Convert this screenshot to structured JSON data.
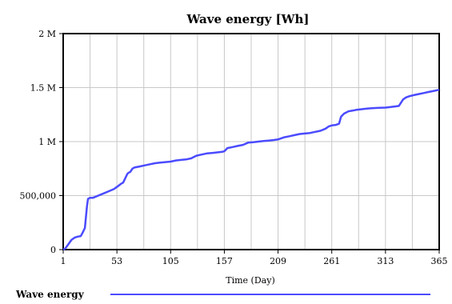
{
  "chart_data": {
    "type": "line",
    "title": "Wave energy [Wh]",
    "xlabel": "Time (Day)",
    "ylabel": "",
    "xlim": [
      1,
      365
    ],
    "ylim": [
      0,
      2000000
    ],
    "x_ticks": [
      1,
      53,
      105,
      157,
      209,
      261,
      313,
      365
    ],
    "x_tick_labels": [
      "1",
      "53",
      "105",
      "157",
      "209",
      "261",
      "313",
      "365"
    ],
    "y_ticks": [
      0,
      500000,
      1000000,
      1500000,
      2000000
    ],
    "y_tick_labels": [
      "0",
      "500,000",
      "1 M",
      "1.5 M",
      "2 M"
    ],
    "grid": true,
    "legend": "bottom",
    "series": [
      {
        "name": "Wave energy",
        "color": "#4b4bff",
        "x": [
          1,
          3,
          6,
          9,
          12,
          15,
          18,
          20,
          22,
          24,
          25,
          27,
          30,
          35,
          40,
          45,
          50,
          53,
          57,
          59,
          61,
          63,
          64,
          66,
          68,
          70,
          75,
          80,
          85,
          90,
          95,
          100,
          105,
          110,
          115,
          120,
          125,
          128,
          130,
          135,
          140,
          145,
          150,
          155,
          157,
          160,
          165,
          170,
          175,
          180,
          185,
          190,
          195,
          200,
          205,
          209,
          215,
          220,
          225,
          230,
          235,
          240,
          245,
          250,
          255,
          258,
          261,
          265,
          268,
          270,
          273,
          275,
          277,
          280,
          283,
          285,
          290,
          295,
          300,
          305,
          310,
          313,
          318,
          322,
          326,
          328,
          330,
          333,
          336,
          340,
          345,
          350,
          355,
          360,
          365
        ],
        "values": [
          0,
          10000,
          50000,
          90000,
          110000,
          120000,
          125000,
          160000,
          200000,
          400000,
          470000,
          480000,
          480000,
          500000,
          520000,
          540000,
          560000,
          580000,
          610000,
          620000,
          660000,
          700000,
          710000,
          720000,
          750000,
          760000,
          770000,
          780000,
          790000,
          800000,
          805000,
          810000,
          815000,
          825000,
          830000,
          835000,
          845000,
          860000,
          870000,
          880000,
          890000,
          895000,
          900000,
          905000,
          910000,
          940000,
          950000,
          960000,
          970000,
          990000,
          995000,
          1000000,
          1005000,
          1010000,
          1015000,
          1020000,
          1040000,
          1050000,
          1060000,
          1070000,
          1075000,
          1080000,
          1090000,
          1100000,
          1120000,
          1140000,
          1150000,
          1155000,
          1165000,
          1230000,
          1260000,
          1270000,
          1280000,
          1285000,
          1290000,
          1295000,
          1300000,
          1305000,
          1310000,
          1312000,
          1314000,
          1315000,
          1320000,
          1325000,
          1330000,
          1360000,
          1390000,
          1410000,
          1420000,
          1430000,
          1440000,
          1450000,
          1460000,
          1470000,
          1480000
        ]
      }
    ]
  }
}
